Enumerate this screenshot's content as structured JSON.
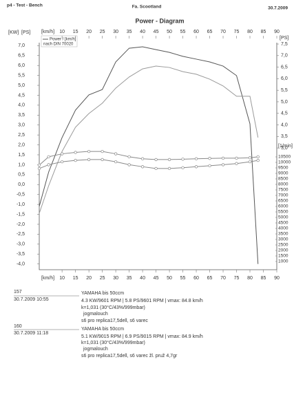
{
  "header": {
    "left": "p4 - Test - Bench",
    "center": "Fa. Scootland",
    "right": "30.7.2009"
  },
  "chart_data": {
    "type": "line",
    "title": "Power - Diagram",
    "y_label": "[KW]",
    "y_label_2": "[PS]",
    "y2_label": "[PS]",
    "y3_label": "[1/min]",
    "x_label": "[km/h]",
    "legend": [
      "Power / [km/h]",
      "nach DIN 70020"
    ],
    "x": [
      1.5,
      5,
      10,
      15,
      20,
      25,
      30,
      35,
      40,
      45,
      50,
      55,
      60,
      65,
      70,
      75,
      80,
      83
    ],
    "series": [
      {
        "color": "#555",
        "values": [
          -1.1,
          0.63,
          2.37,
          3.75,
          4.52,
          4.79,
          6.18,
          6.87,
          6.94,
          6.8,
          6.66,
          6.46,
          6.32,
          6.18,
          5.97,
          5.49,
          3.06,
          -4.0
        ]
      },
      {
        "color": "#999",
        "values": [
          -1.45,
          -0.06,
          1.67,
          2.89,
          3.58,
          4.1,
          4.86,
          5.42,
          5.83,
          5.97,
          5.9,
          5.69,
          5.56,
          5.31,
          4.97,
          4.45,
          4.45,
          2.37
        ]
      },
      {
        "color": "#888",
        "marker": "circle",
        "values": [
          0.98,
          1.4,
          1.55,
          1.62,
          1.67,
          1.67,
          1.55,
          1.4,
          1.3,
          1.26,
          1.26,
          1.28,
          1.3,
          1.32,
          1.33,
          1.33,
          1.35,
          1.4
        ]
      },
      {
        "color": "#888",
        "marker": "circle",
        "values": [
          0.81,
          1.0,
          1.15,
          1.22,
          1.26,
          1.26,
          1.15,
          1.0,
          0.9,
          0.81,
          0.81,
          0.85,
          0.9,
          0.95,
          1.0,
          1.06,
          1.15,
          1.22
        ]
      }
    ],
    "xlim": [
      1.5,
      90
    ],
    "xticks": [
      10,
      15,
      20,
      25,
      30,
      35,
      40,
      45,
      50,
      55,
      60,
      65,
      70,
      75,
      80,
      85,
      90
    ],
    "ylim": [
      -4.15,
      7.15
    ],
    "yticks": [
      {
        "value": 7.0,
        "label": "7,0"
      },
      {
        "value": 6.5,
        "label": "6,5"
      },
      {
        "value": 6.0,
        "label": "6,0"
      },
      {
        "value": 5.5,
        "label": "5,5"
      },
      {
        "value": 5.0,
        "label": "5,0"
      },
      {
        "value": 4.5,
        "label": "4,5"
      },
      {
        "value": 4.0,
        "label": "4,0"
      },
      {
        "value": 3.5,
        "label": "3,5"
      },
      {
        "value": 3.0,
        "label": "3,0"
      },
      {
        "value": 2.5,
        "label": "2,5"
      },
      {
        "value": 2.0,
        "label": "2,0"
      },
      {
        "value": 1.5,
        "label": "1,5"
      },
      {
        "value": 1.0,
        "label": "1,0"
      },
      {
        "value": 0.5,
        "label": "0,5"
      },
      {
        "value": 0.0,
        "label": "0,0"
      },
      {
        "value": -0.5,
        "label": "-0,5"
      },
      {
        "value": -1.0,
        "label": "-1,0"
      },
      {
        "value": -1.5,
        "label": "-1,5"
      },
      {
        "value": -2.0,
        "label": "-2,0"
      },
      {
        "value": -2.5,
        "label": "-2,5"
      },
      {
        "value": -3.0,
        "label": "-3,0"
      },
      {
        "value": -3.5,
        "label": "-3,5"
      },
      {
        "value": -4.0,
        "label": "-4,0"
      }
    ],
    "y2lim": [
      -2.15,
      7.56
    ],
    "y2ticks": [
      {
        "value": 7.5,
        "label": "7,5"
      },
      {
        "value": 7.0,
        "label": "7,0"
      },
      {
        "value": 6.5,
        "label": "6,5"
      },
      {
        "value": 6.0,
        "label": "6,0"
      },
      {
        "value": 5.5,
        "label": "5,5"
      },
      {
        "value": 5.0,
        "label": "5,0"
      },
      {
        "value": 4.5,
        "label": "4,5"
      },
      {
        "value": 4.0,
        "label": "4,0"
      },
      {
        "value": 3.5,
        "label": "3,5"
      },
      {
        "value": 3.0,
        "label": "3,0"
      }
    ],
    "y3lim": [
      500,
      20875
    ],
    "y3ticks": [
      10500,
      10000,
      9500,
      9000,
      8500,
      8000,
      7500,
      7000,
      6500,
      6000,
      5500,
      5000,
      4500,
      4000,
      3500,
      3000,
      2500,
      2000,
      1500,
      1000
    ],
    "grid": false
  },
  "runs": [
    {
      "id": "157",
      "date": "30.7.2009  10:55",
      "vehicle": "YAMAHA bis        50ccm",
      "result": "4.3 KW/9601 RPM  |  5.8 PS/9601 RPM  |  vmax: 84.8 km/h",
      "conditions": "k=1,031  (30°C/43%/999mbar)",
      "rider": "jogmalouch",
      "setup": "s6 pro replica17,5dell, s6 varec"
    },
    {
      "id": "160",
      "date": "30.7.2009  11:18",
      "vehicle": "YAMAHA bis        50ccm",
      "result": "5.1 KW/9015 RPM  |  6.9 PS/9015 RPM  |  vmax: 84.9 km/h",
      "conditions": "k=1,031  (30°C/43%/999mbar)",
      "rider": "jogmalouch",
      "setup": "s6 pro replica17,5dell, s6 varec žl. pruž 4,7gr"
    }
  ]
}
